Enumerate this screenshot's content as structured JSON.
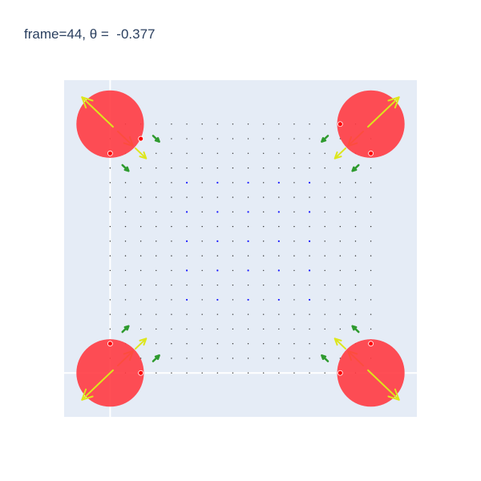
{
  "title": "frame=44, θ =  -0.377",
  "colors": {
    "plot_bg": "#e5ecf6",
    "zero_line": "#ffffff",
    "circle": "#ff3b42",
    "circle_marker": "#ff0000",
    "arrow_large": "#dde61c",
    "arrow_mid": "#a7cf1f",
    "arrow_small": "#2e9a2e",
    "arrow_tiny": "#1a1aff",
    "dot": "#333333"
  },
  "chart_data": {
    "type": "quiver",
    "title": "frame=44, θ =  -0.377",
    "xlim": [
      -0.15,
      1.0
    ],
    "ylim": [
      -0.15,
      1.0
    ],
    "zero_lines": {
      "x": 0,
      "y": 0
    },
    "grid": false,
    "legend": "none",
    "circles": [
      {
        "x": 0,
        "y": 0.85,
        "r": 0.11,
        "theta_deg": 135,
        "arrow": 0.13,
        "markers": [
          [
            0.1,
            0.8
          ],
          [
            0,
            0.75
          ]
        ]
      },
      {
        "x": 0.85,
        "y": 0.85,
        "r": 0.11,
        "theta_deg": 45,
        "arrow": 0.13,
        "markers": [
          [
            0.75,
            0.85
          ],
          [
            0.85,
            0.75
          ]
        ]
      },
      {
        "x": 0,
        "y": 0,
        "r": 0.11,
        "theta_deg": 225,
        "arrow": 0.13,
        "markers": [
          [
            0,
            0.1
          ],
          [
            0.1,
            0
          ]
        ]
      },
      {
        "x": 0.85,
        "y": 0,
        "r": 0.11,
        "theta_deg": 315,
        "arrow": 0.13,
        "markers": [
          [
            0.75,
            0
          ],
          [
            0.85,
            0.1
          ]
        ]
      }
    ],
    "field": {
      "x": [
        0.0,
        0.05,
        0.1,
        0.15,
        0.2,
        0.25,
        0.3,
        0.35,
        0.4,
        0.45,
        0.5,
        0.55,
        0.6,
        0.65,
        0.7,
        0.75,
        0.8,
        0.85
      ],
      "y": [
        0.0,
        0.05,
        0.1,
        0.15,
        0.2,
        0.25,
        0.3,
        0.35,
        0.4,
        0.45,
        0.5,
        0.55,
        0.6,
        0.65,
        0.7,
        0.75,
        0.8,
        0.85
      ],
      "vectors": [
        {
          "x": 0.05,
          "y": 0.05,
          "dx": 0.05,
          "dy": 0.05
        },
        {
          "x": 0.1,
          "y": 0.1,
          "dx": 0.035,
          "dy": 0.035
        },
        {
          "x": 0.05,
          "y": 0.15,
          "dx": 0.02,
          "dy": 0.02
        },
        {
          "x": 0.15,
          "y": 0.05,
          "dx": 0.02,
          "dy": 0.02
        },
        {
          "x": 0.8,
          "y": 0.05,
          "dx": -0.05,
          "dy": 0.05
        },
        {
          "x": 0.75,
          "y": 0.1,
          "dx": -0.035,
          "dy": 0.035
        },
        {
          "x": 0.8,
          "y": 0.15,
          "dx": -0.02,
          "dy": 0.02
        },
        {
          "x": 0.7,
          "y": 0.05,
          "dx": -0.02,
          "dy": 0.02
        },
        {
          "x": 0.05,
          "y": 0.8,
          "dx": 0.05,
          "dy": -0.05
        },
        {
          "x": 0.1,
          "y": 0.75,
          "dx": 0.035,
          "dy": -0.035
        },
        {
          "x": 0.05,
          "y": 0.7,
          "dx": 0.02,
          "dy": -0.02
        },
        {
          "x": 0.15,
          "y": 0.8,
          "dx": 0.02,
          "dy": -0.02
        },
        {
          "x": 0.8,
          "y": 0.8,
          "dx": -0.05,
          "dy": -0.05
        },
        {
          "x": 0.75,
          "y": 0.75,
          "dx": -0.035,
          "dy": -0.035
        },
        {
          "x": 0.8,
          "y": 0.7,
          "dx": -0.02,
          "dy": -0.02
        },
        {
          "x": 0.7,
          "y": 0.8,
          "dx": -0.02,
          "dy": -0.02
        }
      ]
    }
  }
}
